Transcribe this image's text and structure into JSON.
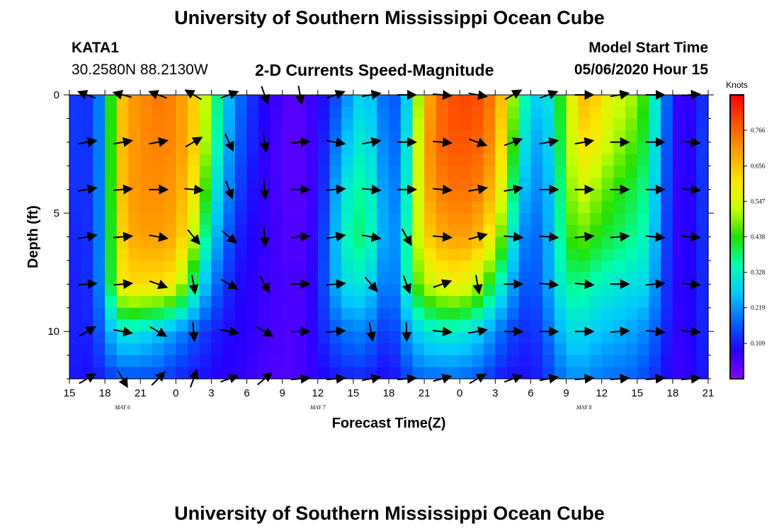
{
  "header": {
    "title": "University of Southern Mississippi Ocean Cube",
    "footer_title": "University of Southern Mississippi Ocean Cube",
    "station": "KATA1",
    "coords": "30.2580N 88.2130W",
    "plot_title": "2-D Currents Speed-Magnitude",
    "model_label": "Model Start Time",
    "model_time": "05/06/2020 Hour 15"
  },
  "chart_data": {
    "type": "heatmap",
    "title": "2-D Currents Speed-Magnitude",
    "xlabel": "Forecast Time(Z)",
    "ylabel": "Depth (ft)",
    "x_hours_range": [
      0,
      54
    ],
    "ylim": [
      0,
      12
    ],
    "y_inverted": true,
    "x_tick_labels": [
      "15",
      "18",
      "21",
      "0",
      "3",
      "6",
      "9",
      "12",
      "15",
      "18",
      "21",
      "0",
      "3",
      "6",
      "9",
      "12",
      "15",
      "18",
      "21"
    ],
    "y_tick_labels": [
      "0",
      "5",
      "10"
    ],
    "y_tick_values": [
      0,
      5,
      10
    ],
    "date_labels": [
      {
        "text": "MAY 6",
        "hour": 4.5
      },
      {
        "text": "MAY 7",
        "hour": 21
      },
      {
        "text": "MAY 8",
        "hour": 43.5
      }
    ],
    "colorbar": {
      "title": "Knots",
      "range": [
        0,
        0.875
      ],
      "ticks": [
        0.109,
        0.219,
        0.328,
        0.438,
        0.547,
        0.656,
        0.766
      ],
      "tick_labels": [
        "0.109",
        "0.219",
        "0.328",
        "0.438",
        "0.547",
        "0.656",
        "0.766"
      ],
      "colors": [
        "#8a00ff",
        "#2200ff",
        "#0066ff",
        "#00c8ff",
        "#00ffb0",
        "#22e000",
        "#c8ff00",
        "#ffe400",
        "#ffa000",
        "#ff5000",
        "#ff0000"
      ]
    },
    "speed_surface_knots": {
      "depth_rows": [
        0,
        2,
        4,
        6,
        8,
        10,
        12
      ],
      "hours": [
        0,
        1,
        2,
        3,
        4,
        5,
        6,
        7,
        8,
        9,
        10,
        11,
        12,
        13,
        14,
        15,
        16,
        17,
        18,
        19,
        20,
        21,
        22,
        23,
        24,
        25,
        26,
        27,
        28,
        29,
        30,
        31,
        32,
        33,
        34,
        35,
        36,
        37,
        38,
        39,
        40,
        41,
        42,
        43,
        44,
        45,
        46,
        47,
        48,
        49,
        50,
        51,
        52,
        53,
        54
      ],
      "values": [
        [
          0.15,
          0.12,
          0.14,
          0.25,
          0.62,
          0.7,
          0.72,
          0.74,
          0.75,
          0.72,
          0.68,
          0.6,
          0.45,
          0.3,
          0.2,
          0.15,
          0.1,
          0.08,
          0.05,
          0.04,
          0.05,
          0.08,
          0.12,
          0.18,
          0.25,
          0.3,
          0.22,
          0.15,
          0.18,
          0.35,
          0.65,
          0.75,
          0.78,
          0.8,
          0.8,
          0.78,
          0.72,
          0.6,
          0.4,
          0.3,
          0.25,
          0.35,
          0.5,
          0.65,
          0.68,
          0.6,
          0.55,
          0.52,
          0.5,
          0.4,
          0.25,
          0.1,
          0.05,
          0.1,
          0.15
        ],
        [
          0.15,
          0.12,
          0.14,
          0.25,
          0.62,
          0.7,
          0.72,
          0.73,
          0.74,
          0.72,
          0.68,
          0.6,
          0.42,
          0.28,
          0.18,
          0.14,
          0.09,
          0.07,
          0.05,
          0.04,
          0.05,
          0.08,
          0.15,
          0.22,
          0.3,
          0.33,
          0.25,
          0.16,
          0.2,
          0.4,
          0.68,
          0.75,
          0.78,
          0.78,
          0.78,
          0.76,
          0.7,
          0.55,
          0.35,
          0.25,
          0.22,
          0.33,
          0.48,
          0.6,
          0.62,
          0.55,
          0.52,
          0.48,
          0.45,
          0.38,
          0.22,
          0.1,
          0.05,
          0.12,
          0.15
        ],
        [
          0.14,
          0.12,
          0.14,
          0.25,
          0.62,
          0.7,
          0.72,
          0.72,
          0.72,
          0.7,
          0.65,
          0.55,
          0.35,
          0.25,
          0.15,
          0.12,
          0.08,
          0.07,
          0.05,
          0.04,
          0.05,
          0.08,
          0.18,
          0.28,
          0.35,
          0.36,
          0.28,
          0.18,
          0.22,
          0.42,
          0.68,
          0.72,
          0.75,
          0.75,
          0.75,
          0.72,
          0.65,
          0.48,
          0.28,
          0.22,
          0.2,
          0.3,
          0.45,
          0.55,
          0.52,
          0.48,
          0.45,
          0.42,
          0.4,
          0.35,
          0.2,
          0.1,
          0.05,
          0.12,
          0.14
        ],
        [
          0.13,
          0.11,
          0.14,
          0.25,
          0.6,
          0.68,
          0.7,
          0.7,
          0.7,
          0.68,
          0.6,
          0.45,
          0.28,
          0.2,
          0.12,
          0.1,
          0.08,
          0.07,
          0.05,
          0.05,
          0.05,
          0.09,
          0.2,
          0.3,
          0.38,
          0.38,
          0.3,
          0.18,
          0.25,
          0.45,
          0.62,
          0.68,
          0.7,
          0.7,
          0.7,
          0.65,
          0.55,
          0.4,
          0.22,
          0.18,
          0.18,
          0.3,
          0.42,
          0.48,
          0.45,
          0.42,
          0.4,
          0.38,
          0.36,
          0.32,
          0.18,
          0.1,
          0.05,
          0.12,
          0.13
        ],
        [
          0.12,
          0.11,
          0.14,
          0.25,
          0.58,
          0.62,
          0.62,
          0.62,
          0.62,
          0.58,
          0.45,
          0.32,
          0.2,
          0.15,
          0.1,
          0.09,
          0.07,
          0.06,
          0.06,
          0.05,
          0.06,
          0.1,
          0.2,
          0.28,
          0.32,
          0.3,
          0.25,
          0.15,
          0.25,
          0.42,
          0.52,
          0.55,
          0.58,
          0.58,
          0.55,
          0.48,
          0.38,
          0.28,
          0.18,
          0.15,
          0.18,
          0.28,
          0.36,
          0.38,
          0.35,
          0.33,
          0.32,
          0.3,
          0.3,
          0.28,
          0.16,
          0.1,
          0.06,
          0.12,
          0.12
        ],
        [
          0.12,
          0.11,
          0.12,
          0.2,
          0.3,
          0.32,
          0.3,
          0.28,
          0.25,
          0.22,
          0.18,
          0.15,
          0.12,
          0.1,
          0.09,
          0.08,
          0.07,
          0.06,
          0.05,
          0.05,
          0.06,
          0.1,
          0.15,
          0.18,
          0.2,
          0.2,
          0.16,
          0.12,
          0.18,
          0.26,
          0.3,
          0.32,
          0.33,
          0.32,
          0.3,
          0.26,
          0.2,
          0.16,
          0.13,
          0.12,
          0.15,
          0.22,
          0.28,
          0.3,
          0.28,
          0.26,
          0.25,
          0.24,
          0.22,
          0.2,
          0.14,
          0.09,
          0.06,
          0.11,
          0.12
        ],
        [
          0.11,
          0.1,
          0.1,
          0.12,
          0.15,
          0.15,
          0.15,
          0.15,
          0.14,
          0.12,
          0.11,
          0.1,
          0.09,
          0.08,
          0.08,
          0.07,
          0.06,
          0.05,
          0.05,
          0.05,
          0.06,
          0.08,
          0.1,
          0.11,
          0.12,
          0.12,
          0.1,
          0.09,
          0.12,
          0.16,
          0.18,
          0.18,
          0.18,
          0.18,
          0.17,
          0.15,
          0.12,
          0.1,
          0.1,
          0.1,
          0.12,
          0.16,
          0.2,
          0.22,
          0.2,
          0.19,
          0.18,
          0.18,
          0.16,
          0.14,
          0.11,
          0.08,
          0.06,
          0.1,
          0.11
        ]
      ]
    },
    "current_vectors_deg": {
      "rows_depth_ft": [
        0,
        2,
        4,
        6,
        8,
        10,
        12
      ],
      "cols_hour": [
        1.5,
        4.5,
        7.5,
        10.5,
        13.5,
        16.5,
        19.5,
        22.5,
        25.5,
        28.5,
        31.5,
        34.5,
        37.5,
        40.5,
        43.5,
        46.5,
        49.5,
        52.5
      ],
      "directions": [
        [
          200,
          195,
          200,
          210,
          -20,
          70,
          80,
          -20,
          -10,
          0,
          5,
          10,
          -30,
          -20,
          0,
          -10,
          0,
          -5
        ],
        [
          -10,
          -10,
          -10,
          -30,
          65,
          80,
          -5,
          10,
          -10,
          0,
          5,
          20,
          -20,
          -10,
          -10,
          0,
          0,
          5
        ],
        [
          -10,
          -5,
          0,
          5,
          70,
          85,
          0,
          -5,
          5,
          0,
          5,
          -10,
          -10,
          0,
          0,
          0,
          0,
          5
        ],
        [
          -10,
          -5,
          10,
          50,
          40,
          85,
          -5,
          -10,
          10,
          60,
          5,
          -15,
          5,
          5,
          -5,
          -5,
          5,
          5
        ],
        [
          -5,
          -5,
          20,
          80,
          30,
          60,
          0,
          -5,
          50,
          70,
          -20,
          80,
          0,
          5,
          5,
          0,
          -5,
          5
        ],
        [
          -30,
          10,
          30,
          85,
          10,
          30,
          0,
          -5,
          80,
          88,
          5,
          -10,
          0,
          0,
          0,
          -5,
          5,
          5
        ],
        [
          -30,
          60,
          -45,
          -70,
          -20,
          -40,
          -5,
          -5,
          -10,
          -5,
          -15,
          -30,
          -20,
          -10,
          -5,
          -5,
          -5,
          -5
        ]
      ]
    }
  }
}
